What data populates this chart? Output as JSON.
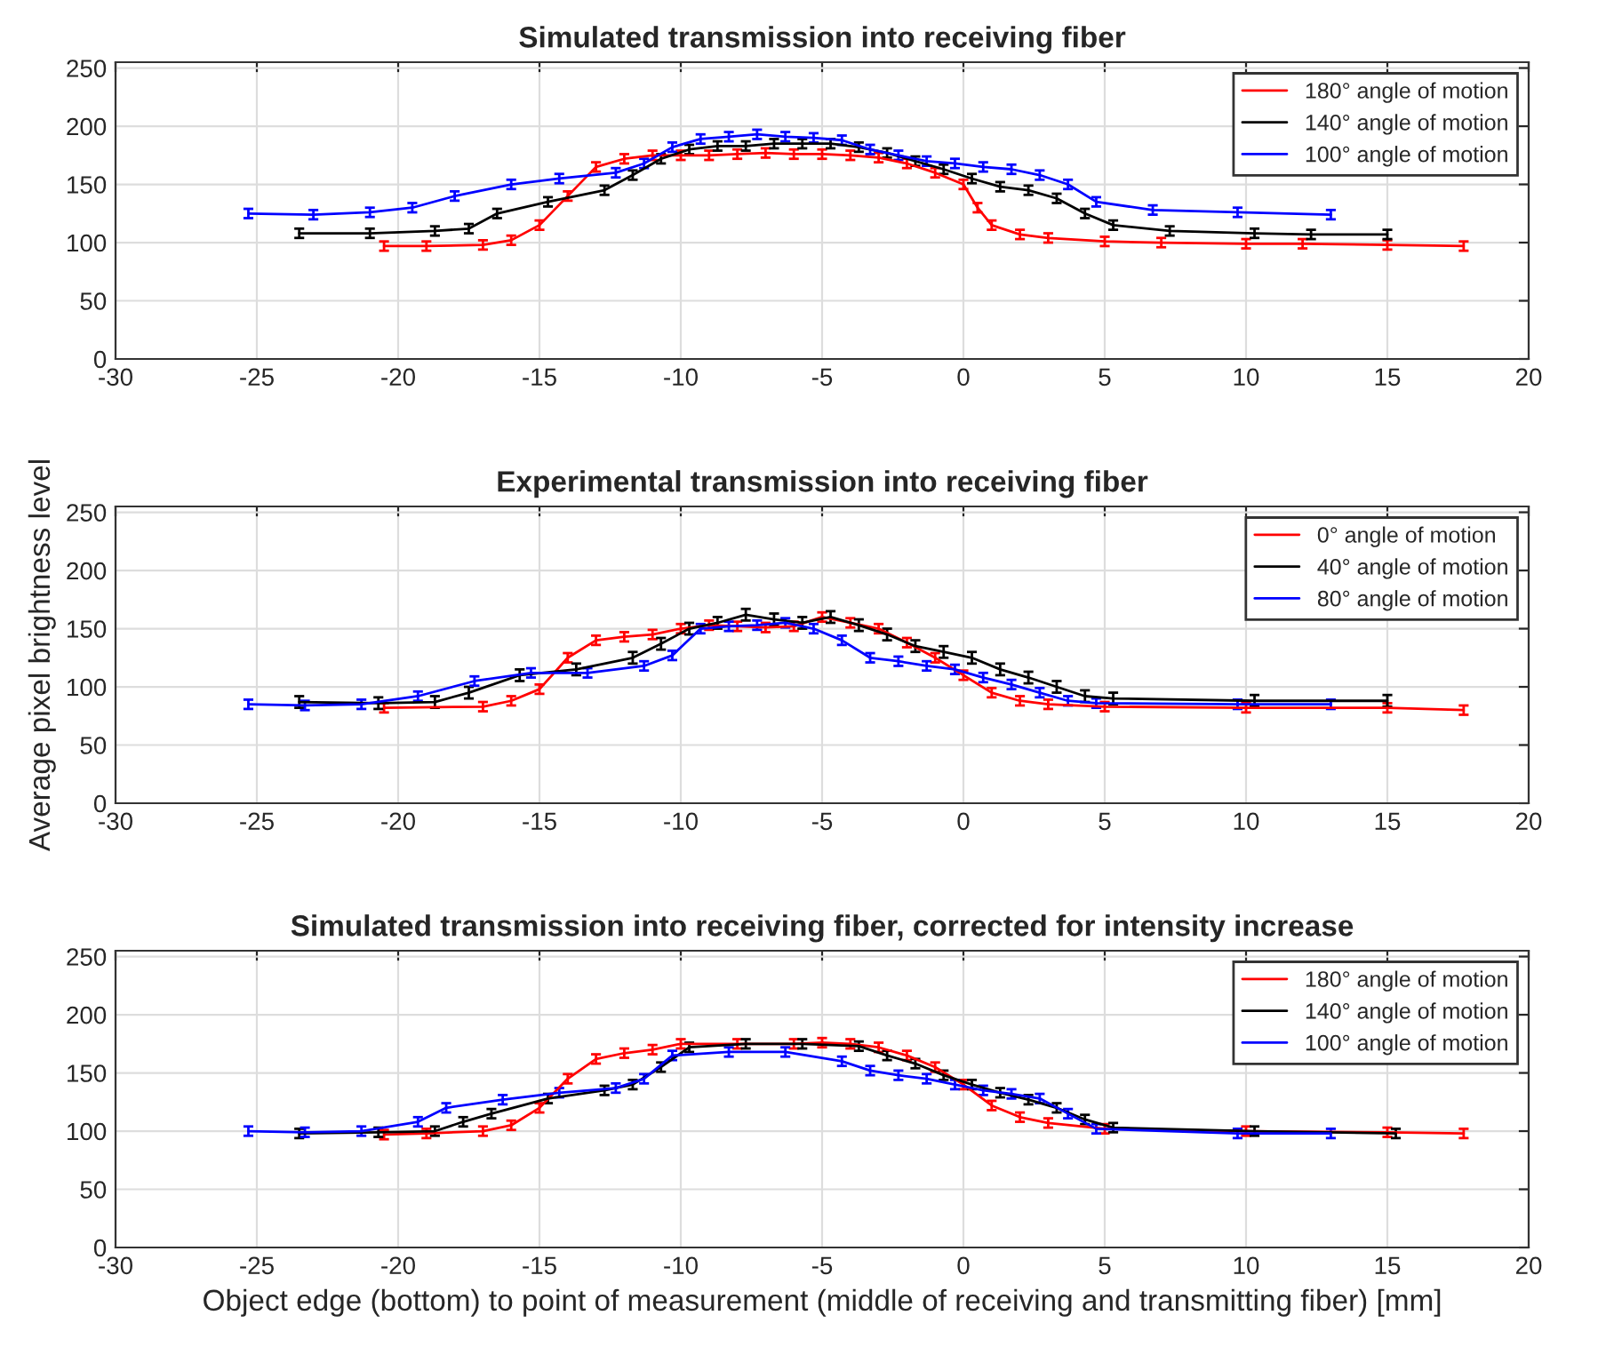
{
  "chart_data": [
    {
      "type": "line",
      "title": "Simulated transmission into receiving fiber",
      "xlim": [
        -30,
        20
      ],
      "ylim": [
        0,
        255
      ],
      "xticks": [
        -30,
        -25,
        -20,
        -15,
        -10,
        -5,
        0,
        5,
        10,
        15,
        20
      ],
      "yticks": [
        0,
        50,
        100,
        150,
        200,
        250
      ],
      "grid": true,
      "legend": "top right",
      "marker": "none",
      "line_style": "solid",
      "series": [
        {
          "name": "180° angle of motion",
          "color": "#ff0000",
          "x": [
            -20.5,
            -19,
            -17,
            -16,
            -15,
            -14,
            -13,
            -12,
            -11,
            -10,
            -9,
            -8,
            -7,
            -6,
            -5,
            -4,
            -3,
            -2,
            -1,
            0,
            0.5,
            1,
            2,
            3,
            5,
            7,
            10,
            12,
            15,
            17.7
          ],
          "values": [
            97,
            97,
            98,
            102,
            115,
            140,
            165,
            172,
            175,
            175,
            175,
            176,
            177,
            176,
            176,
            175,
            173,
            168,
            160,
            150,
            130,
            115,
            107,
            104,
            101,
            100,
            99,
            99,
            98,
            97
          ],
          "errors": [
            4,
            4,
            4,
            4,
            4,
            4,
            4,
            4,
            4,
            4,
            4,
            4,
            4,
            4,
            4,
            4,
            4,
            4,
            4,
            4,
            4,
            4,
            4,
            4,
            4,
            4,
            4,
            4,
            4,
            4
          ]
        },
        {
          "name": "140° angle of motion",
          "color": "#000000",
          "x": [
            -23.5,
            -21,
            -18.7,
            -17.5,
            -16.5,
            -14.7,
            -12.7,
            -11.7,
            -10.7,
            -9.7,
            -8.7,
            -7.7,
            -6.7,
            -5.7,
            -4.7,
            -3.7,
            -2.7,
            -1.7,
            -0.7,
            0.3,
            1.3,
            2.3,
            3.3,
            4.3,
            5.3,
            7.3,
            10.3,
            12.3,
            15
          ],
          "values": [
            108,
            108,
            110,
            112,
            125,
            135,
            145,
            158,
            172,
            180,
            183,
            183,
            185,
            185,
            185,
            182,
            177,
            170,
            163,
            155,
            148,
            145,
            138,
            125,
            115,
            110,
            108,
            107,
            107
          ],
          "errors": [
            4,
            4,
            4,
            4,
            4,
            4,
            4,
            4,
            4,
            4,
            4,
            4,
            4,
            4,
            4,
            4,
            4,
            4,
            4,
            4,
            4,
            4,
            4,
            4,
            4,
            4,
            4,
            4,
            4
          ]
        },
        {
          "name": "100° angle of motion",
          "color": "#0000ff",
          "x": [
            -25.3,
            -23,
            -21,
            -19.5,
            -18,
            -16,
            -14.3,
            -12.3,
            -11.3,
            -10.3,
            -9.3,
            -8.3,
            -7.3,
            -6.3,
            -5.3,
            -4.3,
            -3.3,
            -2.3,
            -1.3,
            -0.3,
            0.7,
            1.7,
            2.7,
            3.7,
            4.7,
            6.7,
            9.7,
            13
          ],
          "values": [
            125,
            124,
            126,
            130,
            140,
            150,
            155,
            160,
            168,
            182,
            189,
            191,
            193,
            191,
            190,
            188,
            180,
            175,
            170,
            168,
            165,
            163,
            158,
            150,
            135,
            128,
            126,
            124
          ],
          "errors": [
            4,
            4,
            4,
            4,
            4,
            4,
            4,
            4,
            4,
            4,
            4,
            4,
            4,
            4,
            4,
            4,
            4,
            4,
            4,
            4,
            4,
            4,
            4,
            4,
            4,
            4,
            4,
            4
          ]
        }
      ]
    },
    {
      "type": "line",
      "title": "Experimental transmission into receiving fiber",
      "ylabel": "Average pixel brightness level",
      "xlim": [
        -30,
        20
      ],
      "ylim": [
        0,
        255
      ],
      "xticks": [
        -30,
        -25,
        -20,
        -15,
        -10,
        -5,
        0,
        5,
        10,
        15,
        20
      ],
      "yticks": [
        0,
        50,
        100,
        150,
        200,
        250
      ],
      "grid": true,
      "legend": "top right",
      "marker": "none",
      "line_style": "solid",
      "series": [
        {
          "name": "0° angle of motion",
          "color": "#ff0000",
          "x": [
            -20.5,
            -17,
            -16,
            -15,
            -14,
            -13,
            -12,
            -11,
            -10,
            -9,
            -8,
            -7,
            -6,
            -5,
            -4,
            -3,
            -2,
            -1,
            0,
            1,
            2,
            3,
            5,
            10,
            15,
            17.7
          ],
          "values": [
            82,
            83,
            88,
            98,
            125,
            140,
            143,
            145,
            150,
            153,
            152,
            151,
            152,
            160,
            155,
            150,
            138,
            125,
            110,
            95,
            88,
            85,
            83,
            82,
            82,
            80
          ],
          "errors": [
            4,
            4,
            4,
            4,
            4,
            4,
            4,
            4,
            4,
            4,
            4,
            4,
            4,
            4,
            4,
            4,
            4,
            4,
            4,
            4,
            4,
            4,
            4,
            4,
            4,
            4
          ]
        },
        {
          "name": "40° angle of motion",
          "color": "#000000",
          "x": [
            -23.5,
            -20.7,
            -18.7,
            -17.5,
            -15.7,
            -13.7,
            -11.7,
            -10.7,
            -9.7,
            -8.7,
            -7.7,
            -6.7,
            -5.7,
            -4.7,
            -3.7,
            -2.7,
            -1.7,
            -0.7,
            0.3,
            1.3,
            2.3,
            3.3,
            4.3,
            5.3,
            10.3,
            15
          ],
          "values": [
            87,
            86,
            87,
            95,
            110,
            115,
            125,
            137,
            150,
            155,
            162,
            158,
            155,
            160,
            153,
            145,
            135,
            130,
            125,
            115,
            108,
            100,
            92,
            90,
            88,
            88
          ],
          "errors": [
            5,
            5,
            5,
            5,
            5,
            5,
            5,
            5,
            5,
            5,
            5,
            5,
            5,
            5,
            5,
            5,
            5,
            5,
            5,
            5,
            5,
            5,
            5,
            5,
            5,
            5
          ]
        },
        {
          "name": "80° angle of motion",
          "color": "#0000ff",
          "x": [
            -25.3,
            -23.3,
            -21.3,
            -19.3,
            -17.3,
            -15.3,
            -13.3,
            -11.3,
            -10.3,
            -9.3,
            -8.3,
            -7.3,
            -6.3,
            -5.3,
            -4.3,
            -3.3,
            -2.3,
            -1.3,
            -0.3,
            0.7,
            1.7,
            2.7,
            3.7,
            4.7,
            9.7,
            13
          ],
          "values": [
            85,
            84,
            85,
            92,
            105,
            112,
            112,
            118,
            127,
            150,
            152,
            153,
            155,
            150,
            140,
            125,
            122,
            118,
            115,
            108,
            102,
            95,
            88,
            86,
            85,
            85
          ],
          "errors": [
            4,
            4,
            4,
            4,
            4,
            4,
            4,
            4,
            4,
            4,
            4,
            4,
            4,
            4,
            4,
            4,
            4,
            4,
            4,
            4,
            4,
            4,
            4,
            4,
            4,
            4
          ]
        }
      ]
    },
    {
      "type": "line",
      "title": "Simulated transmission into receiving fiber, corrected for intensity increase",
      "xlabel": "Object edge (bottom) to point of measurement (middle of receiving and transmitting fiber) [mm]",
      "xlim": [
        -30,
        20
      ],
      "ylim": [
        0,
        255
      ],
      "xticks": [
        -30,
        -25,
        -20,
        -15,
        -10,
        -5,
        0,
        5,
        10,
        15,
        20
      ],
      "yticks": [
        0,
        50,
        100,
        150,
        200,
        250
      ],
      "grid": true,
      "legend": "top right",
      "marker": "none",
      "line_style": "solid",
      "series": [
        {
          "name": "180° angle of motion",
          "color": "#ff0000",
          "x": [
            -20.5,
            -19,
            -17,
            -16,
            -15,
            -14,
            -13,
            -12,
            -11,
            -10,
            -8,
            -6,
            -5,
            -4,
            -3,
            -2,
            -1,
            0,
            1,
            2,
            3,
            5,
            10,
            15,
            17.7
          ],
          "values": [
            97,
            98,
            100,
            105,
            120,
            145,
            162,
            167,
            170,
            175,
            175,
            175,
            176,
            175,
            172,
            165,
            155,
            140,
            122,
            112,
            107,
            102,
            100,
            99,
            98
          ],
          "errors": [
            4,
            4,
            4,
            4,
            4,
            4,
            4,
            4,
            4,
            4,
            4,
            4,
            4,
            4,
            4,
            4,
            4,
            4,
            4,
            4,
            4,
            4,
            4,
            4,
            4
          ]
        },
        {
          "name": "140° angle of motion",
          "color": "#000000",
          "x": [
            -23.5,
            -20.7,
            -18.7,
            -17.7,
            -16.7,
            -14.7,
            -12.7,
            -11.7,
            -10.7,
            -9.7,
            -7.7,
            -5.7,
            -3.7,
            -2.7,
            -1.7,
            -0.7,
            0.3,
            1.3,
            2.3,
            3.3,
            4.3,
            5.3,
            10.3,
            15.3
          ],
          "values": [
            98,
            99,
            100,
            108,
            115,
            128,
            135,
            140,
            155,
            172,
            175,
            175,
            173,
            165,
            158,
            148,
            140,
            133,
            127,
            120,
            110,
            103,
            100,
            98
          ],
          "errors": [
            4,
            4,
            4,
            4,
            4,
            4,
            4,
            4,
            4,
            4,
            4,
            4,
            4,
            4,
            4,
            4,
            4,
            4,
            4,
            4,
            4,
            4,
            4,
            4
          ]
        },
        {
          "name": "100° angle of motion",
          "color": "#0000ff",
          "x": [
            -25.3,
            -23.3,
            -21.3,
            -19.3,
            -18.3,
            -16.3,
            -14.3,
            -12.3,
            -11.3,
            -10.3,
            -8.3,
            -6.3,
            -4.3,
            -3.3,
            -2.3,
            -1.3,
            -0.3,
            0.7,
            1.7,
            2.7,
            3.7,
            4.7,
            9.7,
            13
          ],
          "values": [
            100,
            99,
            100,
            108,
            120,
            127,
            133,
            137,
            145,
            165,
            168,
            168,
            160,
            152,
            148,
            145,
            140,
            135,
            132,
            128,
            115,
            102,
            98,
            98
          ],
          "errors": [
            4,
            4,
            4,
            4,
            4,
            4,
            4,
            4,
            4,
            4,
            4,
            4,
            4,
            4,
            4,
            4,
            4,
            4,
            4,
            4,
            4,
            4,
            4,
            4
          ]
        }
      ]
    }
  ]
}
